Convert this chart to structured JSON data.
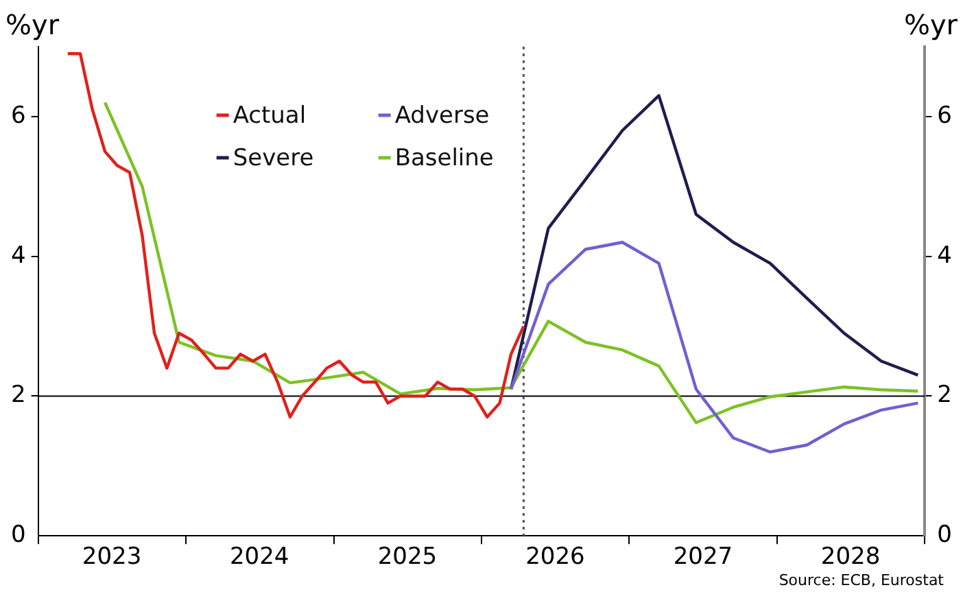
{
  "chart_data": {
    "type": "line",
    "ylabel": "%yr",
    "y2label": "%yr",
    "xlim": [
      "2023-01-01",
      "2029-01-01"
    ],
    "xticks": [
      {
        "value": "2023-01-01",
        "label": null
      },
      {
        "value": "2023-07-02",
        "label": "2023"
      },
      {
        "value": "2024-01-01",
        "label": null
      },
      {
        "value": "2024-07-01",
        "label": "2024"
      },
      {
        "value": "2025-01-01",
        "label": null
      },
      {
        "value": "2025-07-02",
        "label": "2025"
      },
      {
        "value": "2026-01-01",
        "label": null
      },
      {
        "value": "2026-07-02",
        "label": "2026"
      },
      {
        "value": "2027-01-01",
        "label": null
      },
      {
        "value": "2027-07-02",
        "label": "2027"
      },
      {
        "value": "2028-01-01",
        "label": null
      },
      {
        "value": "2028-07-01",
        "label": "2028"
      },
      {
        "value": "2029-01-01",
        "label": null
      }
    ],
    "ylim": [
      0,
      7
    ],
    "yticks": [
      0,
      2,
      4,
      6
    ],
    "y2lim": [
      0,
      7
    ],
    "y2ticks": [
      0,
      2,
      4,
      6
    ],
    "grid": false,
    "legend": "top left",
    "marker": "none",
    "ref_lines": [
      {
        "axis": "y",
        "value": 2,
        "label": null,
        "color": "#000000",
        "line_style": "solid"
      },
      {
        "axis": "x",
        "value": "2026-04-15",
        "label": null,
        "color": "#555555",
        "line_style": "dotted"
      }
    ],
    "annotations": [
      "Source: ECB, Eurostat"
    ],
    "series": [
      {
        "name": "Actual",
        "color": "#e0201b",
        "x": [
          "2023-03-15",
          "2023-04-15",
          "2023-05-15",
          "2023-06-15",
          "2023-07-15",
          "2023-08-15",
          "2023-09-15",
          "2023-10-15",
          "2023-11-15",
          "2023-12-15",
          "2024-01-15",
          "2024-02-15",
          "2024-03-15",
          "2024-04-15",
          "2024-05-15",
          "2024-06-15",
          "2024-07-15",
          "2024-08-15",
          "2024-09-15",
          "2024-10-15",
          "2024-11-15",
          "2024-12-15",
          "2025-01-15",
          "2025-02-15",
          "2025-03-15",
          "2025-04-15",
          "2025-05-15",
          "2025-06-15",
          "2025-07-15",
          "2025-08-15",
          "2025-09-15",
          "2025-10-15",
          "2025-11-15",
          "2025-12-15",
          "2026-01-15",
          "2026-02-15",
          "2026-03-15",
          "2026-04-15"
        ],
        "values": [
          6.9,
          6.9,
          6.1,
          5.5,
          5.3,
          5.2,
          4.3,
          2.9,
          2.4,
          2.9,
          2.8,
          2.6,
          2.4,
          2.4,
          2.6,
          2.5,
          2.6,
          2.2,
          1.7,
          2.0,
          2.2,
          2.4,
          2.5,
          2.3,
          2.2,
          2.2,
          1.9,
          2.0,
          2.0,
          2.0,
          2.2,
          2.1,
          2.1,
          2.0,
          1.7,
          1.9,
          2.6,
          3.0
        ]
      },
      {
        "name": "Adverse",
        "color": "#7060d0",
        "x": [
          "2026-03-15",
          "2026-06-15",
          "2026-09-15",
          "2026-12-15",
          "2027-03-15",
          "2027-06-15",
          "2027-09-15",
          "2027-12-15",
          "2028-03-15",
          "2028-06-15",
          "2028-09-15",
          "2028-12-15"
        ],
        "values": [
          2.1,
          3.6,
          4.1,
          4.2,
          3.9,
          2.1,
          1.4,
          1.2,
          1.3,
          1.6,
          1.8,
          1.9
        ]
      },
      {
        "name": "Severe",
        "color": "#1f1d4d",
        "x": [
          "2026-03-15",
          "2026-06-15",
          "2026-09-15",
          "2026-12-15",
          "2027-03-15",
          "2027-06-15",
          "2027-09-15",
          "2027-12-15",
          "2028-03-15",
          "2028-06-15",
          "2028-09-15",
          "2028-12-15"
        ],
        "values": [
          2.1,
          4.4,
          5.1,
          5.8,
          6.3,
          4.6,
          4.2,
          3.9,
          3.4,
          2.9,
          2.5,
          2.3
        ]
      },
      {
        "name": "Baseline",
        "color": "#7cc225",
        "x": [
          "2023-06-15",
          "2023-09-15",
          "2023-12-15",
          "2024-03-15",
          "2024-06-15",
          "2024-09-15",
          "2024-12-15",
          "2025-03-15",
          "2025-06-15",
          "2025-09-15",
          "2025-12-15",
          "2026-03-15",
          "2026-06-15",
          "2026-09-15",
          "2026-12-15",
          "2027-03-15",
          "2027-06-15",
          "2027-09-15",
          "2027-12-15",
          "2028-03-15",
          "2028-06-15",
          "2028-09-15",
          "2028-12-15"
        ],
        "values": [
          6.2,
          5.0,
          2.77,
          2.58,
          2.5,
          2.19,
          2.26,
          2.34,
          2.03,
          2.11,
          2.09,
          2.12,
          3.07,
          2.77,
          2.66,
          2.43,
          1.62,
          1.84,
          1.99,
          2.06,
          2.13,
          2.09,
          2.07
        ]
      }
    ]
  }
}
